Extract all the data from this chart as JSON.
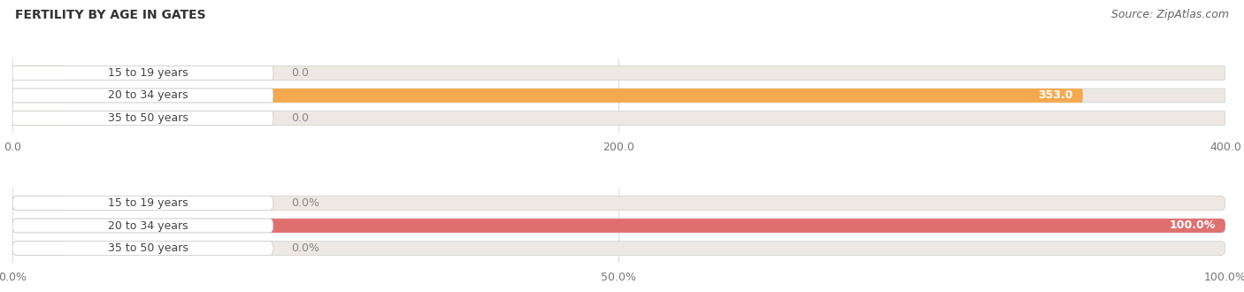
{
  "title": "FERTILITY BY AGE IN GATES",
  "source": "Source: ZipAtlas.com",
  "top_chart": {
    "categories": [
      "15 to 19 years",
      "20 to 34 years",
      "35 to 50 years"
    ],
    "values": [
      0.0,
      353.0,
      0.0
    ],
    "bar_color": "#F5A94E",
    "bar_bg_color": "#EDE8E3",
    "label_bg_color": "#F5EDE6",
    "xlim": [
      0,
      400
    ],
    "xticks": [
      0.0,
      200.0,
      400.0
    ],
    "xticklabels": [
      "0.0",
      "200.0",
      "400.0"
    ],
    "value_suffix": ""
  },
  "bottom_chart": {
    "categories": [
      "15 to 19 years",
      "20 to 34 years",
      "35 to 50 years"
    ],
    "values": [
      0.0,
      100.0,
      0.0
    ],
    "bar_color": "#E07070",
    "bar_bg_color": "#EDE8E3",
    "label_bg_color": "#F0E8E8",
    "xlim": [
      0,
      100
    ],
    "xticks": [
      0.0,
      50.0,
      100.0
    ],
    "xticklabels": [
      "0.0%",
      "50.0%",
      "100.0%"
    ],
    "value_suffix": "%"
  },
  "fig_bg_color": "#FFFFFF",
  "title_fontsize": 10,
  "source_fontsize": 9,
  "label_fontsize": 9,
  "tick_fontsize": 9,
  "bar_height": 0.62,
  "category_label_color": "#444444",
  "grid_color": "#DDDDDD"
}
